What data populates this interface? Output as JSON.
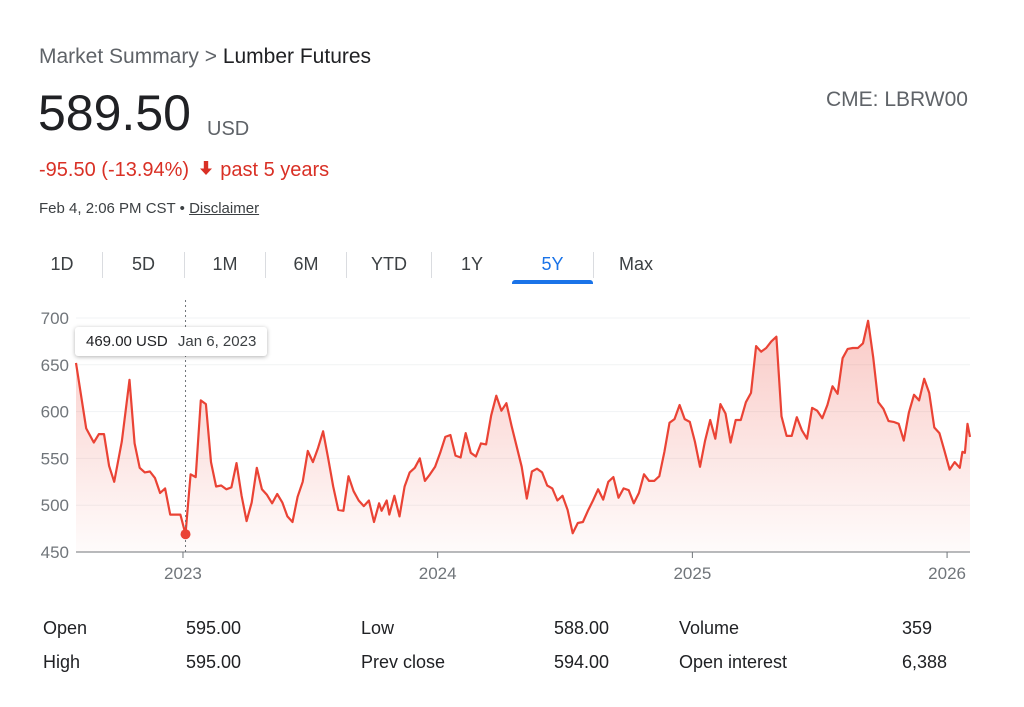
{
  "breadcrumb": {
    "parent": "Market Summary",
    "sep": ">",
    "current": "Lumber Futures"
  },
  "price": "589.50",
  "currency": "USD",
  "exchange": "CME: LBRW00",
  "change": {
    "amount": "-95.50",
    "percent": "(-13.94%)",
    "period": "past 5 years",
    "color": "#d93025",
    "icon": "arrow-down-icon"
  },
  "timestamp": "Feb 4, 2:06 PM CST",
  "separator": "•",
  "disclaimer": "Disclaimer",
  "tabs": [
    {
      "label": "1D",
      "active": false
    },
    {
      "label": "5D",
      "active": false
    },
    {
      "label": "1M",
      "active": false
    },
    {
      "label": "6M",
      "active": false
    },
    {
      "label": "YTD",
      "active": false
    },
    {
      "label": "1Y",
      "active": false
    },
    {
      "label": "5Y",
      "active": true
    },
    {
      "label": "Max",
      "active": false
    }
  ],
  "tooltip": {
    "value": "469.00 USD",
    "date": "Jan 6, 2023"
  },
  "chart_data": {
    "type": "area",
    "color": "#ea4335",
    "accent": "#1a73e8",
    "ylim": [
      450,
      700
    ],
    "y_ticks": [
      450,
      500,
      550,
      600,
      650,
      700
    ],
    "x_ticks": [
      {
        "label": "2023",
        "t": 2023.0
      },
      {
        "label": "2024",
        "t": 2024.0
      },
      {
        "label": "2025",
        "t": 2025.0
      },
      {
        "label": "2026",
        "t": 2026.0
      }
    ],
    "xlim": [
      2022.58,
      2026.09
    ],
    "highlight": {
      "t": 2023.01,
      "v": 469
    },
    "series": [
      {
        "t": 2022.58,
        "v": 652
      },
      {
        "t": 2022.62,
        "v": 582
      },
      {
        "t": 2022.65,
        "v": 567
      },
      {
        "t": 2022.67,
        "v": 576
      },
      {
        "t": 2022.69,
        "v": 576
      },
      {
        "t": 2022.71,
        "v": 542
      },
      {
        "t": 2022.73,
        "v": 525
      },
      {
        "t": 2022.76,
        "v": 568
      },
      {
        "t": 2022.79,
        "v": 634
      },
      {
        "t": 2022.81,
        "v": 566
      },
      {
        "t": 2022.83,
        "v": 540
      },
      {
        "t": 2022.85,
        "v": 535
      },
      {
        "t": 2022.87,
        "v": 536
      },
      {
        "t": 2022.89,
        "v": 529
      },
      {
        "t": 2022.91,
        "v": 513
      },
      {
        "t": 2022.93,
        "v": 518
      },
      {
        "t": 2022.95,
        "v": 490
      },
      {
        "t": 2022.99,
        "v": 490
      },
      {
        "t": 2023.01,
        "v": 469
      },
      {
        "t": 2023.03,
        "v": 533
      },
      {
        "t": 2023.05,
        "v": 530
      },
      {
        "t": 2023.07,
        "v": 612
      },
      {
        "t": 2023.09,
        "v": 608
      },
      {
        "t": 2023.11,
        "v": 546
      },
      {
        "t": 2023.13,
        "v": 520
      },
      {
        "t": 2023.15,
        "v": 521
      },
      {
        "t": 2023.17,
        "v": 517
      },
      {
        "t": 2023.19,
        "v": 519
      },
      {
        "t": 2023.21,
        "v": 545
      },
      {
        "t": 2023.23,
        "v": 510
      },
      {
        "t": 2023.25,
        "v": 483
      },
      {
        "t": 2023.27,
        "v": 503
      },
      {
        "t": 2023.29,
        "v": 540
      },
      {
        "t": 2023.31,
        "v": 517
      },
      {
        "t": 2023.33,
        "v": 511
      },
      {
        "t": 2023.35,
        "v": 502
      },
      {
        "t": 2023.37,
        "v": 512
      },
      {
        "t": 2023.39,
        "v": 503
      },
      {
        "t": 2023.41,
        "v": 488
      },
      {
        "t": 2023.43,
        "v": 482
      },
      {
        "t": 2023.45,
        "v": 509
      },
      {
        "t": 2023.47,
        "v": 525
      },
      {
        "t": 2023.49,
        "v": 558
      },
      {
        "t": 2023.51,
        "v": 546
      },
      {
        "t": 2023.53,
        "v": 561
      },
      {
        "t": 2023.55,
        "v": 579
      },
      {
        "t": 2023.57,
        "v": 550
      },
      {
        "t": 2023.59,
        "v": 520
      },
      {
        "t": 2023.61,
        "v": 495
      },
      {
        "t": 2023.63,
        "v": 494
      },
      {
        "t": 2023.65,
        "v": 531
      },
      {
        "t": 2023.67,
        "v": 515
      },
      {
        "t": 2023.69,
        "v": 505
      },
      {
        "t": 2023.71,
        "v": 499
      },
      {
        "t": 2023.73,
        "v": 505
      },
      {
        "t": 2023.75,
        "v": 482
      },
      {
        "t": 2023.77,
        "v": 502
      },
      {
        "t": 2023.78,
        "v": 494
      },
      {
        "t": 2023.8,
        "v": 505
      },
      {
        "t": 2023.81,
        "v": 490
      },
      {
        "t": 2023.83,
        "v": 510
      },
      {
        "t": 2023.85,
        "v": 488
      },
      {
        "t": 2023.87,
        "v": 520
      },
      {
        "t": 2023.89,
        "v": 535
      },
      {
        "t": 2023.91,
        "v": 540
      },
      {
        "t": 2023.93,
        "v": 550
      },
      {
        "t": 2023.95,
        "v": 526
      },
      {
        "t": 2023.97,
        "v": 533
      },
      {
        "t": 2023.99,
        "v": 541
      },
      {
        "t": 2024.01,
        "v": 556
      },
      {
        "t": 2024.03,
        "v": 573
      },
      {
        "t": 2024.05,
        "v": 575
      },
      {
        "t": 2024.07,
        "v": 553
      },
      {
        "t": 2024.09,
        "v": 551
      },
      {
        "t": 2024.11,
        "v": 577
      },
      {
        "t": 2024.13,
        "v": 556
      },
      {
        "t": 2024.15,
        "v": 552
      },
      {
        "t": 2024.17,
        "v": 566
      },
      {
        "t": 2024.19,
        "v": 565
      },
      {
        "t": 2024.21,
        "v": 596
      },
      {
        "t": 2024.23,
        "v": 617
      },
      {
        "t": 2024.25,
        "v": 601
      },
      {
        "t": 2024.27,
        "v": 609
      },
      {
        "t": 2024.29,
        "v": 585
      },
      {
        "t": 2024.31,
        "v": 563
      },
      {
        "t": 2024.33,
        "v": 541
      },
      {
        "t": 2024.35,
        "v": 507
      },
      {
        "t": 2024.37,
        "v": 536
      },
      {
        "t": 2024.39,
        "v": 539
      },
      {
        "t": 2024.41,
        "v": 535
      },
      {
        "t": 2024.43,
        "v": 521
      },
      {
        "t": 2024.45,
        "v": 518
      },
      {
        "t": 2024.47,
        "v": 505
      },
      {
        "t": 2024.49,
        "v": 510
      },
      {
        "t": 2024.51,
        "v": 495
      },
      {
        "t": 2024.53,
        "v": 470
      },
      {
        "t": 2024.55,
        "v": 481
      },
      {
        "t": 2024.57,
        "v": 482
      },
      {
        "t": 2024.59,
        "v": 494
      },
      {
        "t": 2024.61,
        "v": 505
      },
      {
        "t": 2024.63,
        "v": 517
      },
      {
        "t": 2024.65,
        "v": 506
      },
      {
        "t": 2024.67,
        "v": 525
      },
      {
        "t": 2024.69,
        "v": 530
      },
      {
        "t": 2024.71,
        "v": 508
      },
      {
        "t": 2024.73,
        "v": 518
      },
      {
        "t": 2024.75,
        "v": 516
      },
      {
        "t": 2024.77,
        "v": 502
      },
      {
        "t": 2024.79,
        "v": 513
      },
      {
        "t": 2024.81,
        "v": 533
      },
      {
        "t": 2024.83,
        "v": 526
      },
      {
        "t": 2024.85,
        "v": 526
      },
      {
        "t": 2024.87,
        "v": 531
      },
      {
        "t": 2024.89,
        "v": 557
      },
      {
        "t": 2024.91,
        "v": 588
      },
      {
        "t": 2024.93,
        "v": 592
      },
      {
        "t": 2024.95,
        "v": 607
      },
      {
        "t": 2024.97,
        "v": 592
      },
      {
        "t": 2024.99,
        "v": 589
      },
      {
        "t": 2025.01,
        "v": 568
      },
      {
        "t": 2025.03,
        "v": 541
      },
      {
        "t": 2025.05,
        "v": 569
      },
      {
        "t": 2025.07,
        "v": 591
      },
      {
        "t": 2025.09,
        "v": 571
      },
      {
        "t": 2025.11,
        "v": 608
      },
      {
        "t": 2025.13,
        "v": 598
      },
      {
        "t": 2025.15,
        "v": 567
      },
      {
        "t": 2025.17,
        "v": 591
      },
      {
        "t": 2025.19,
        "v": 591
      },
      {
        "t": 2025.21,
        "v": 610
      },
      {
        "t": 2025.23,
        "v": 620
      },
      {
        "t": 2025.25,
        "v": 670
      },
      {
        "t": 2025.27,
        "v": 664
      },
      {
        "t": 2025.29,
        "v": 668
      },
      {
        "t": 2025.31,
        "v": 675
      },
      {
        "t": 2025.33,
        "v": 680
      },
      {
        "t": 2025.35,
        "v": 595
      },
      {
        "t": 2025.37,
        "v": 574
      },
      {
        "t": 2025.39,
        "v": 574
      },
      {
        "t": 2025.41,
        "v": 594
      },
      {
        "t": 2025.43,
        "v": 580
      },
      {
        "t": 2025.45,
        "v": 571
      },
      {
        "t": 2025.47,
        "v": 604
      },
      {
        "t": 2025.49,
        "v": 601
      },
      {
        "t": 2025.51,
        "v": 593
      },
      {
        "t": 2025.53,
        "v": 607
      },
      {
        "t": 2025.55,
        "v": 627
      },
      {
        "t": 2025.57,
        "v": 619
      },
      {
        "t": 2025.59,
        "v": 657
      },
      {
        "t": 2025.61,
        "v": 667
      },
      {
        "t": 2025.63,
        "v": 668
      },
      {
        "t": 2025.65,
        "v": 668
      },
      {
        "t": 2025.67,
        "v": 673
      },
      {
        "t": 2025.69,
        "v": 697
      },
      {
        "t": 2025.71,
        "v": 658
      },
      {
        "t": 2025.73,
        "v": 610
      },
      {
        "t": 2025.75,
        "v": 603
      },
      {
        "t": 2025.77,
        "v": 590
      },
      {
        "t": 2025.79,
        "v": 589
      },
      {
        "t": 2025.81,
        "v": 587
      },
      {
        "t": 2025.83,
        "v": 569
      },
      {
        "t": 2025.85,
        "v": 599
      },
      {
        "t": 2025.87,
        "v": 618
      },
      {
        "t": 2025.89,
        "v": 612
      },
      {
        "t": 2025.91,
        "v": 635
      },
      {
        "t": 2025.93,
        "v": 620
      },
      {
        "t": 2025.95,
        "v": 583
      },
      {
        "t": 2025.97,
        "v": 577
      },
      {
        "t": 2025.99,
        "v": 558
      },
      {
        "t": 2026.01,
        "v": 538
      },
      {
        "t": 2026.03,
        "v": 546
      },
      {
        "t": 2026.05,
        "v": 540
      },
      {
        "t": 2026.06,
        "v": 557
      },
      {
        "t": 2026.07,
        "v": 556
      },
      {
        "t": 2026.08,
        "v": 587
      },
      {
        "t": 2026.09,
        "v": 573
      }
    ]
  },
  "stats": [
    {
      "label": "Open",
      "value": "595.00"
    },
    {
      "label": "High",
      "value": "595.00"
    },
    {
      "label": "Low",
      "value": "588.00"
    },
    {
      "label": "Prev close",
      "value": "594.00"
    },
    {
      "label": "Volume",
      "value": "359"
    },
    {
      "label": "Open interest",
      "value": "6,388"
    }
  ]
}
